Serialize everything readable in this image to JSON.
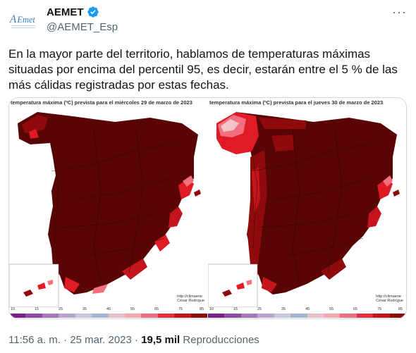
{
  "author": {
    "name": "AEMET",
    "handle": "@AEMET_Esp",
    "avatar_icon": "aemet-logo",
    "verified_icon": "verified-badge-icon"
  },
  "tweet_text": "En la mayor parte del territorio, hablamos de temperaturas máximas situadas por encima del percentil 95, es decir, estarán entre el 5 % de las más cálidas registradas por estas fechas.",
  "maps": [
    {
      "title": "temperatura máxima (ºC) prevista para el miércoles 29 de marzo de 2023",
      "credit_line1": "http://climaene",
      "credit_line2": "César Rodrígue"
    },
    {
      "title": "temperatura máxima (ºC) prevista para el jueves 30 de marzo de 2023",
      "credit_line1": "http://climaene",
      "credit_line2": "César Rodrígue"
    }
  ],
  "legend_ticks": [
    "10",
    "15",
    "25",
    "35",
    "45",
    "55",
    "65",
    "75",
    "85"
  ],
  "legend_colors": [
    "#7a1f8c",
    "#8d4aa6",
    "#a577bb",
    "#b9a3cf",
    "#c8c8dd",
    "#a5b4d0",
    "#e6c2c8",
    "#f5a7b0",
    "#f07080",
    "#e53040",
    "#c4141d",
    "#8f0b0b"
  ],
  "footer": {
    "time": "11:56 a. m.",
    "date": "25 mar. 2023",
    "views_count": "19,5 mil",
    "views_label": "Reproducciones"
  },
  "colors": {
    "dark_red": "#5a0505",
    "mid_red": "#8f0b0b",
    "bright_red": "#e01b24",
    "pink": "#f07080",
    "light_pink": "#f5c4c8",
    "verified_blue": "#1d9bf0"
  }
}
